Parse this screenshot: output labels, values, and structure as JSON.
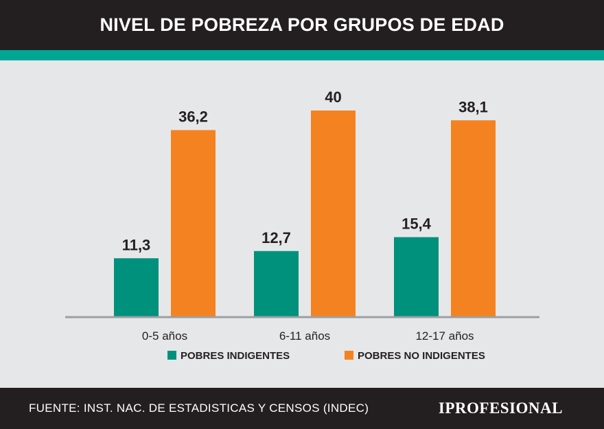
{
  "header": {
    "title": "NIVEL DE POBREZA POR GRUPOS DE EDAD"
  },
  "colors": {
    "teal": "#00917c",
    "orange": "#f58220",
    "accent": "#00a693"
  },
  "chart_data": {
    "type": "bar",
    "title": "NIVEL DE POBREZA POR GRUPOS DE EDAD",
    "categories": [
      "0-5 años",
      "6-11 años",
      "12-17 años"
    ],
    "series": [
      {
        "name": "POBRES INDIGENTES",
        "values": [
          11.3,
          12.7,
          15.4
        ],
        "labels": [
          "11,3",
          "12,7",
          "15,4"
        ],
        "color": "#00917c"
      },
      {
        "name": "POBRES NO INDIGENTES",
        "values": [
          36.2,
          40,
          38.1
        ],
        "labels": [
          "36,2",
          "40",
          "38,1"
        ],
        "color": "#f58220"
      }
    ],
    "ylim": [
      0,
      40
    ],
    "grid": false,
    "legend": "bottom"
  },
  "footer": {
    "source": "FUENTE: INST. NAC. DE ESTADISTICAS Y CENSOS (INDEC)",
    "brand": "IPROFESIONAL"
  }
}
